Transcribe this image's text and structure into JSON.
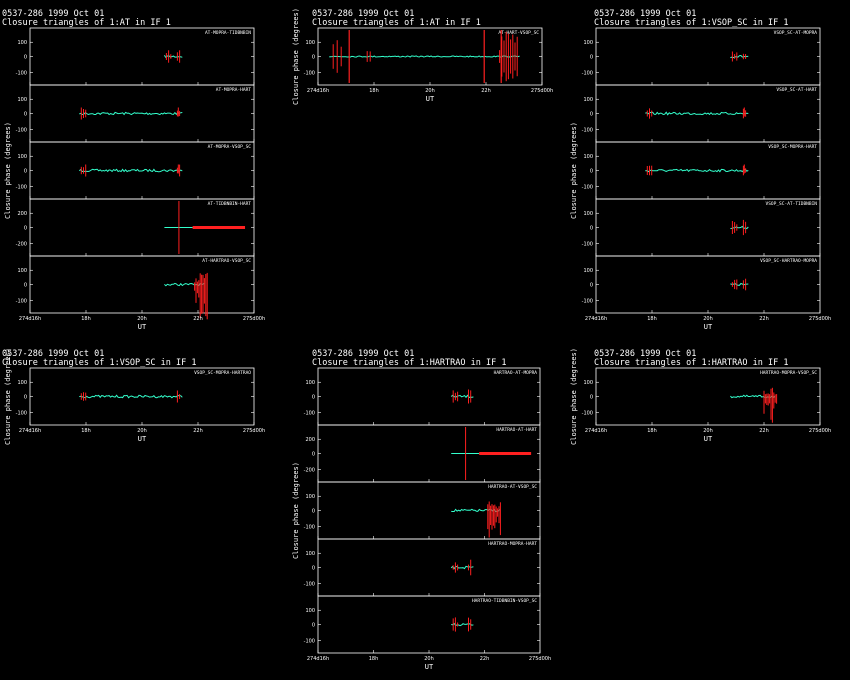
{
  "colors": {
    "background": "#000000",
    "axes": "#ffffff",
    "data": "#33ffcc",
    "flagged": "#ff2020"
  },
  "chart_data": [
    {
      "type": "scatter",
      "title": "0537-286  1999 Oct 01",
      "subtitle": "Closure triangles of 1:AT in IF 1",
      "xlabel": "UT",
      "ylabel": "Closure phase  (degrees)",
      "x_tick_labels": [
        "274d16h",
        "18h",
        "20h",
        "22h",
        "275d00h"
      ],
      "panels": [
        {
          "label": "AT-MOPRA-TIDBNBIN",
          "y_tick_labels": [
            "100",
            "0",
            "-100"
          ]
        },
        {
          "label": "AT-MOPRA-HART",
          "y_tick_labels": [
            "100",
            "0",
            "-100"
          ]
        },
        {
          "label": "AT-MOPRA-VSOP_SC",
          "y_tick_labels": [
            "100",
            "0",
            "-100"
          ]
        },
        {
          "label": "AT-TIDBNBIN-HART",
          "y_tick_labels": [
            "200",
            "0",
            "-200"
          ]
        },
        {
          "label": "AT-HARTRAO-VSOP_SC",
          "y_tick_labels": [
            "100",
            "0",
            "-100"
          ]
        }
      ]
    },
    {
      "type": "scatter",
      "title": "0537-286  1999 Oct 01",
      "subtitle": "Closure triangles of 1:AT in IF 1",
      "xlabel": "UT",
      "ylabel": "Closure phase  (degrees)",
      "x_tick_labels": [
        "274d16h",
        "18h",
        "20h",
        "22h",
        "275d00h"
      ],
      "panels": [
        {
          "label": "AT-HART-VSOP_SC",
          "y_tick_labels": [
            "100",
            "0",
            "-100"
          ]
        }
      ]
    },
    {
      "type": "scatter",
      "title": "0537-286  1999 Oct 01",
      "subtitle": "Closure triangles of 1:VSOP_SC in IF 1",
      "xlabel": "UT",
      "ylabel": "Closure phase  (degrees)",
      "x_tick_labels": [
        "274d16h",
        "18h",
        "20h",
        "22h",
        "275d00h"
      ],
      "panels": [
        {
          "label": "VSOP_SC-AT-MOPRA",
          "y_tick_labels": [
            "100",
            "0",
            "-100"
          ]
        },
        {
          "label": "VSOP_SC-AT-HART",
          "y_tick_labels": [
            "100",
            "0",
            "-100"
          ]
        },
        {
          "label": "VSOP_SC-MOPRA-HART",
          "y_tick_labels": [
            "100",
            "0",
            "-100"
          ]
        },
        {
          "label": "VSOP_SC-AT-TIDBNBIN",
          "y_tick_labels": [
            "100",
            "0",
            "-100"
          ]
        },
        {
          "label": "VSOP_SC-HARTRAO-MOPRA",
          "y_tick_labels": [
            "100",
            "0",
            "-100"
          ]
        }
      ]
    },
    {
      "type": "scatter",
      "title": "0537-286  1999 Oct 01",
      "subtitle": "Closure triangles of 1:VSOP_SC in IF 1",
      "xlabel": "UT",
      "ylabel": "Closure phase  (degrees)",
      "x_tick_labels": [
        "274d16h",
        "18h",
        "20h",
        "22h",
        "275d00h"
      ],
      "panels": [
        {
          "label": "VSOP_SC-MOPRA-HARTRAO",
          "y_tick_labels": [
            "100",
            "0",
            "-100"
          ]
        }
      ]
    },
    {
      "type": "scatter",
      "title": "0537-286  1999 Oct 01",
      "subtitle": "Closure triangles of 1:HARTRAO in IF 1",
      "xlabel": "UT",
      "ylabel": "Closure phase  (degrees)",
      "x_tick_labels": [
        "274d16h",
        "18h",
        "20h",
        "22h",
        "275d00h"
      ],
      "panels": [
        {
          "label": "HARTRAO-AT-MOPRA",
          "y_tick_labels": [
            "100",
            "0",
            "-100"
          ]
        },
        {
          "label": "HARTRAO-AT-HART",
          "y_tick_labels": [
            "200",
            "0",
            "-200"
          ]
        },
        {
          "label": "HARTRAO-AT-VSOP_SC",
          "y_tick_labels": [
            "100",
            "0",
            "-100"
          ]
        },
        {
          "label": "HARTRAO-MOPRA-HART",
          "y_tick_labels": [
            "100",
            "0",
            "-100"
          ]
        },
        {
          "label": "HARTRAO-TIDBNBIN-VSOP_SC",
          "y_tick_labels": [
            "100",
            "0",
            "-100"
          ]
        }
      ]
    },
    {
      "type": "scatter",
      "title": "0537-286  1999 Oct 01",
      "subtitle": "Closure triangles of 1:HARTRAO in IF 1",
      "xlabel": "UT",
      "ylabel": "Closure phase  (degrees)",
      "x_tick_labels": [
        "274d16h",
        "18h",
        "20h",
        "22h",
        "275d00h"
      ],
      "panels": [
        {
          "label": "HARTRAO-MOPRA-VSOP_SC",
          "y_tick_labels": [
            "100",
            "0",
            "-100"
          ]
        }
      ]
    }
  ]
}
